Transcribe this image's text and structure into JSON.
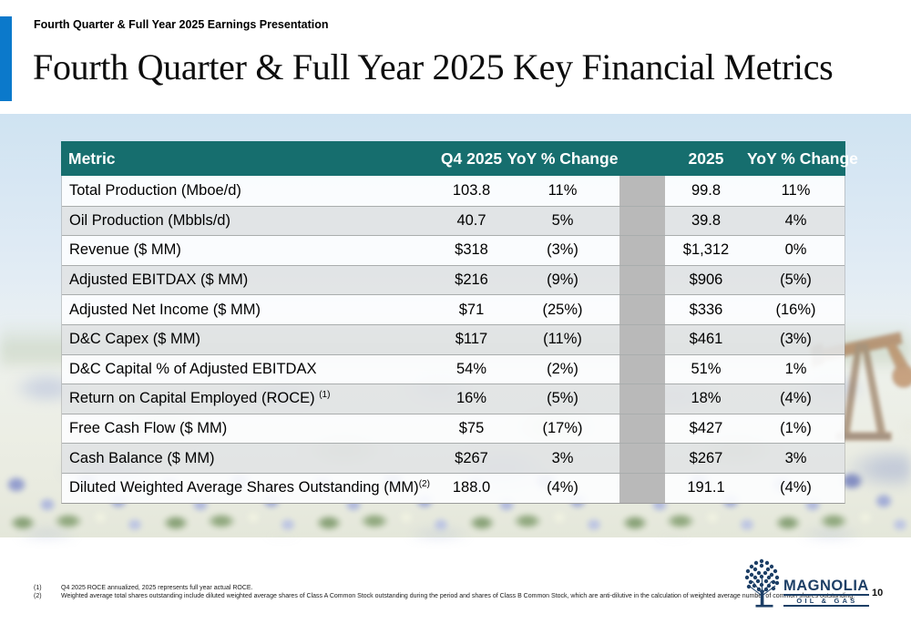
{
  "slide": {
    "eyebrow": "Fourth Quarter & Full Year 2025 Earnings Presentation",
    "title": "Fourth Quarter & Full Year 2025 Key Financial Metrics",
    "page_number": "10"
  },
  "table": {
    "headers": {
      "metric": "Metric",
      "q4": "Q4 2025",
      "q4_yoy": "YoY % Change",
      "fy": "2025",
      "fy_yoy": "YoY % Change"
    },
    "rows": [
      {
        "metric": "Total Production (Mboe/d)",
        "sup": "",
        "q4": "103.8",
        "q4_yoy": "11%",
        "fy": "99.8",
        "fy_yoy": "11%"
      },
      {
        "metric": "Oil Production (Mbbls/d)",
        "sup": "",
        "q4": "40.7",
        "q4_yoy": "5%",
        "fy": "39.8",
        "fy_yoy": "4%"
      },
      {
        "metric": "Revenue ($ MM)",
        "sup": "",
        "q4": "$318",
        "q4_yoy": "(3%)",
        "fy": "$1,312",
        "fy_yoy": "0%"
      },
      {
        "metric": "Adjusted EBITDAX ($ MM)",
        "sup": "",
        "q4": "$216",
        "q4_yoy": "(9%)",
        "fy": "$906",
        "fy_yoy": "(5%)"
      },
      {
        "metric": "Adjusted Net Income ($ MM)",
        "sup": "",
        "q4": "$71",
        "q4_yoy": "(25%)",
        "fy": "$336",
        "fy_yoy": "(16%)"
      },
      {
        "metric": "D&C Capex ($ MM)",
        "sup": "",
        "q4": "$117",
        "q4_yoy": "(11%)",
        "fy": "$461",
        "fy_yoy": "(3%)"
      },
      {
        "metric": "D&C Capital % of Adjusted EBITDAX",
        "sup": "",
        "q4": "54%",
        "q4_yoy": "(2%)",
        "fy": "51%",
        "fy_yoy": "1%"
      },
      {
        "metric": "Return on Capital Employed (ROCE) ",
        "sup": "(1)",
        "q4": "16%",
        "q4_yoy": "(5%)",
        "fy": "18%",
        "fy_yoy": "(4%)"
      },
      {
        "metric": "Free Cash Flow ($ MM)",
        "sup": "",
        "q4": "$75",
        "q4_yoy": "(17%)",
        "fy": "$427",
        "fy_yoy": "(1%)"
      },
      {
        "metric": "Cash Balance ($ MM)",
        "sup": "",
        "q4": "$267",
        "q4_yoy": "3%",
        "fy": "$267",
        "fy_yoy": "3%"
      },
      {
        "metric": "Diluted Weighted Average Shares Outstanding (MM)",
        "sup": "(2)",
        "q4": "188.0",
        "q4_yoy": "(4%)",
        "fy": "191.1",
        "fy_yoy": "(4%)"
      }
    ]
  },
  "footnotes": [
    {
      "num": "(1)",
      "text": "Q4 2025 ROCE annualized, 2025 represents full year actual ROCE."
    },
    {
      "num": "(2)",
      "text": "Weighted average total shares outstanding include diluted weighted average shares of Class A Common Stock outstanding during the period and shares of Class B Common Stock, which are anti-dilutive in the calculation of weighted average number of common shares outstanding."
    }
  ],
  "logo": {
    "name": "MAGNOLIA",
    "sub": "OIL & GAS"
  },
  "colors": {
    "header_teal": "#166e6e",
    "accent_blue": "#0b79cb",
    "spacer_gray": "#b9b9b9",
    "logo_navy": "#1d3f66"
  }
}
